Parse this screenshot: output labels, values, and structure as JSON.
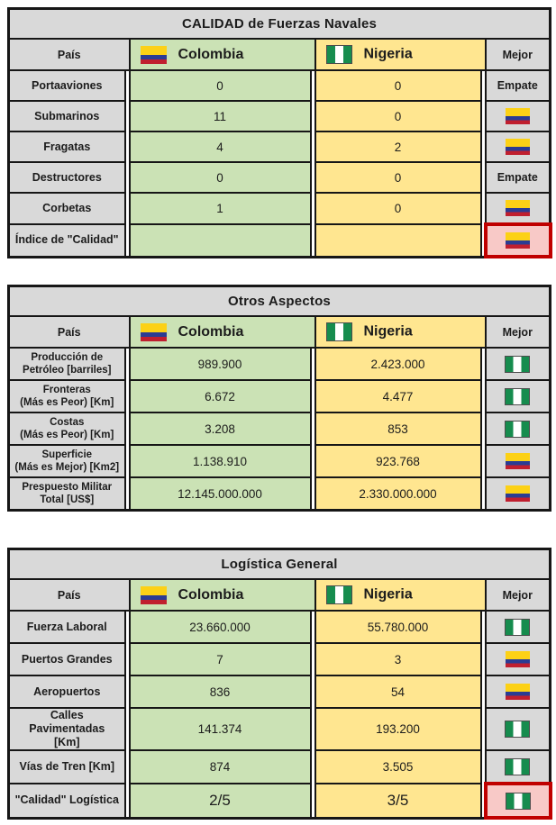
{
  "header_labels": {
    "pais": "País",
    "colombia": "Colombia",
    "nigeria": "Nigeria",
    "mejor": "Mejor",
    "empate": "Empate"
  },
  "colors": {
    "table_border": "#161616",
    "gray_fill": "#d9d9d9",
    "colombia_fill": "#cbe2b5",
    "nigeria_fill": "#ffe690",
    "highlight_fill": "#f8c9c7",
    "highlight_border": "#c00000",
    "colombia_flag": [
      "#fcd116",
      "#2b3c93",
      "#c01f2f"
    ],
    "nigeria_flag": [
      "#168c4e",
      "#ffffff",
      "#168c4e"
    ]
  },
  "chart_data": [
    {
      "type": "table",
      "title": "CALIDAD de Fuerzas Navales",
      "columns": [
        "País",
        "Colombia",
        "Nigeria",
        "Mejor"
      ],
      "rows": [
        {
          "label": "Portaaviones",
          "colombia": "0",
          "nigeria": "0",
          "mejor": "empate",
          "highlight": false
        },
        {
          "label": "Submarinos",
          "colombia": "11",
          "nigeria": "0",
          "mejor": "colombia",
          "highlight": false
        },
        {
          "label": "Fragatas",
          "colombia": "4",
          "nigeria": "2",
          "mejor": "colombia",
          "highlight": false
        },
        {
          "label": "Destructores",
          "colombia": "0",
          "nigeria": "0",
          "mejor": "empate",
          "highlight": false
        },
        {
          "label": "Corbetas",
          "colombia": "1",
          "nigeria": "0",
          "mejor": "colombia",
          "highlight": false
        },
        {
          "label": "Índice de \"Calidad\"",
          "colombia": "",
          "nigeria": "",
          "mejor": "colombia",
          "highlight": true
        }
      ]
    },
    {
      "type": "table",
      "title": "Otros Aspectos",
      "columns": [
        "País",
        "Colombia",
        "Nigeria",
        "Mejor"
      ],
      "rows": [
        {
          "label": "Producción de\nPetróleo [barriles]",
          "colombia": "989.900",
          "nigeria": "2.423.000",
          "mejor": "nigeria",
          "highlight": false
        },
        {
          "label": "Fronteras\n(Más es Peor) [Km]",
          "colombia": "6.672",
          "nigeria": "4.477",
          "mejor": "nigeria",
          "highlight": false
        },
        {
          "label": "Costas\n(Más es Peor) [Km]",
          "colombia": "3.208",
          "nigeria": "853",
          "mejor": "nigeria",
          "highlight": false
        },
        {
          "label": "Superficie\n(Más es Mejor) [Km2]",
          "colombia": "1.138.910",
          "nigeria": "923.768",
          "mejor": "colombia",
          "highlight": false
        },
        {
          "label": "Prespuesto Militar\nTotal [US$]",
          "colombia": "12.145.000.000",
          "nigeria": "2.330.000.000",
          "mejor": "colombia",
          "highlight": false
        }
      ]
    },
    {
      "type": "table",
      "title": "Logística General",
      "columns": [
        "País",
        "Colombia",
        "Nigeria",
        "Mejor"
      ],
      "rows": [
        {
          "label": "Fuerza Laboral",
          "colombia": "23.660.000",
          "nigeria": "55.780.000",
          "mejor": "nigeria",
          "highlight": false
        },
        {
          "label": "Puertos Grandes",
          "colombia": "7",
          "nigeria": "3",
          "mejor": "colombia",
          "highlight": false
        },
        {
          "label": "Aeropuertos",
          "colombia": "836",
          "nigeria": "54",
          "mejor": "colombia",
          "highlight": false
        },
        {
          "label": "Calles Pavimentadas\n[Km]",
          "colombia": "141.374",
          "nigeria": "193.200",
          "mejor": "nigeria",
          "highlight": false
        },
        {
          "label": "Vías de Tren [Km]",
          "colombia": "874",
          "nigeria": "3.505",
          "mejor": "nigeria",
          "highlight": false
        },
        {
          "label": "\"Calidad\" Logística",
          "colombia": "2/5",
          "nigeria": "3/5",
          "mejor": "nigeria",
          "highlight": true,
          "emphasis": true
        }
      ]
    }
  ]
}
